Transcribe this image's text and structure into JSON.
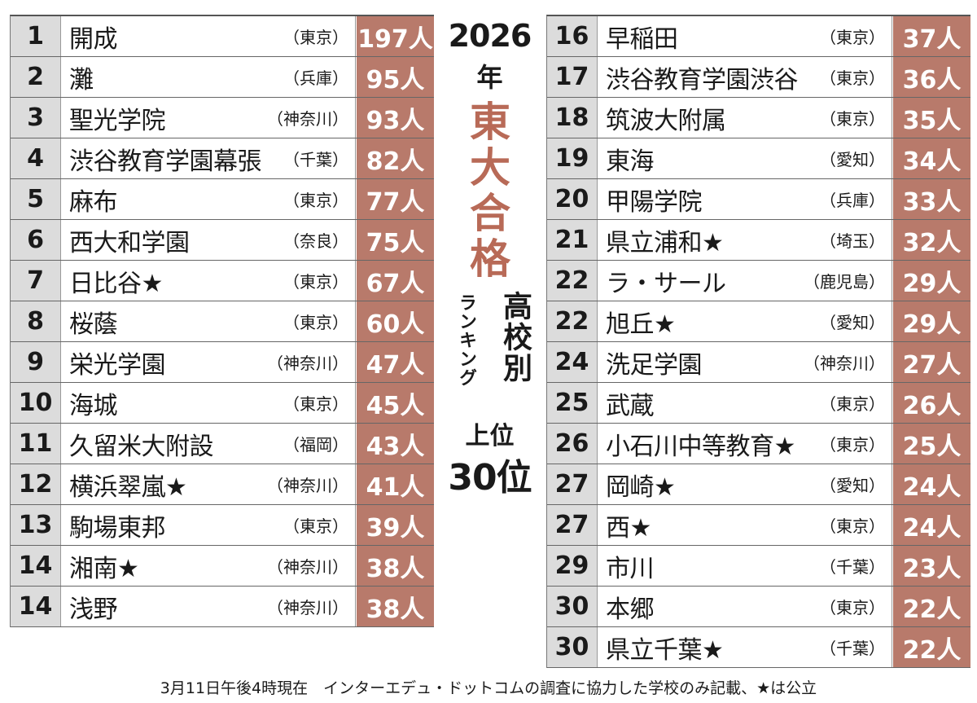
{
  "title": {
    "year": "2026",
    "nen": "年",
    "main": "東大合格",
    "sub1": "高校別",
    "sub2": "ランキング",
    "joui": "上位",
    "top": "30位"
  },
  "colors": {
    "count_bg": "#b87a6b",
    "title_accent": "#b86a57",
    "rank_bg": "#dcdcdc"
  },
  "left_rows": [
    {
      "rank": "1",
      "school": "開成",
      "pref": "（東京）",
      "count": "197人"
    },
    {
      "rank": "2",
      "school": "灘",
      "pref": "（兵庫）",
      "count": "95人"
    },
    {
      "rank": "3",
      "school": "聖光学院",
      "pref": "（神奈川）",
      "count": "93人"
    },
    {
      "rank": "4",
      "school": "渋谷教育学園幕張",
      "pref": "（千葉）",
      "count": "82人"
    },
    {
      "rank": "5",
      "school": "麻布",
      "pref": "（東京）",
      "count": "77人"
    },
    {
      "rank": "6",
      "school": "西大和学園",
      "pref": "（奈良）",
      "count": "75人"
    },
    {
      "rank": "7",
      "school": "日比谷★",
      "pref": "（東京）",
      "count": "67人"
    },
    {
      "rank": "8",
      "school": "桜蔭",
      "pref": "（東京）",
      "count": "60人"
    },
    {
      "rank": "9",
      "school": "栄光学園",
      "pref": "（神奈川）",
      "count": "47人"
    },
    {
      "rank": "10",
      "school": "海城",
      "pref": "（東京）",
      "count": "45人"
    },
    {
      "rank": "11",
      "school": "久留米大附設",
      "pref": "（福岡）",
      "count": "43人"
    },
    {
      "rank": "12",
      "school": "横浜翠嵐★",
      "pref": "（神奈川）",
      "count": "41人"
    },
    {
      "rank": "13",
      "school": "駒場東邦",
      "pref": "（東京）",
      "count": "39人"
    },
    {
      "rank": "14",
      "school": "湘南★",
      "pref": "（神奈川）",
      "count": "38人"
    },
    {
      "rank": "14",
      "school": "浅野",
      "pref": "（神奈川）",
      "count": "38人"
    }
  ],
  "right_rows": [
    {
      "rank": "16",
      "school": "早稲田",
      "pref": "（東京）",
      "count": "37人"
    },
    {
      "rank": "17",
      "school": "渋谷教育学園渋谷",
      "pref": "（東京）",
      "count": "36人"
    },
    {
      "rank": "18",
      "school": "筑波大附属",
      "pref": "（東京）",
      "count": "35人"
    },
    {
      "rank": "19",
      "school": "東海",
      "pref": "（愛知）",
      "count": "34人"
    },
    {
      "rank": "20",
      "school": "甲陽学院",
      "pref": "（兵庫）",
      "count": "33人"
    },
    {
      "rank": "21",
      "school": "県立浦和★",
      "pref": "（埼玉）",
      "count": "32人"
    },
    {
      "rank": "22",
      "school": "ラ・サール",
      "pref": "（鹿児島）",
      "count": "29人"
    },
    {
      "rank": "22",
      "school": "旭丘★",
      "pref": "（愛知）",
      "count": "29人"
    },
    {
      "rank": "24",
      "school": "洗足学園",
      "pref": "（神奈川）",
      "count": "27人"
    },
    {
      "rank": "25",
      "school": "武蔵",
      "pref": "（東京）",
      "count": "26人"
    },
    {
      "rank": "26",
      "school": "小石川中等教育★",
      "pref": "（東京）",
      "count": "25人"
    },
    {
      "rank": "27",
      "school": "岡崎★",
      "pref": "（愛知）",
      "count": "24人"
    },
    {
      "rank": "27",
      "school": "西★",
      "pref": "（東京）",
      "count": "24人"
    },
    {
      "rank": "29",
      "school": "市川",
      "pref": "（千葉）",
      "count": "23人"
    },
    {
      "rank": "30",
      "school": "本郷",
      "pref": "（東京）",
      "count": "22人"
    },
    {
      "rank": "30",
      "school": "県立千葉★",
      "pref": "（千葉）",
      "count": "22人"
    }
  ],
  "footer": "3月11日午後4時現在　インターエデュ・ドットコムの調査に協力した学校のみ記載、★は公立"
}
